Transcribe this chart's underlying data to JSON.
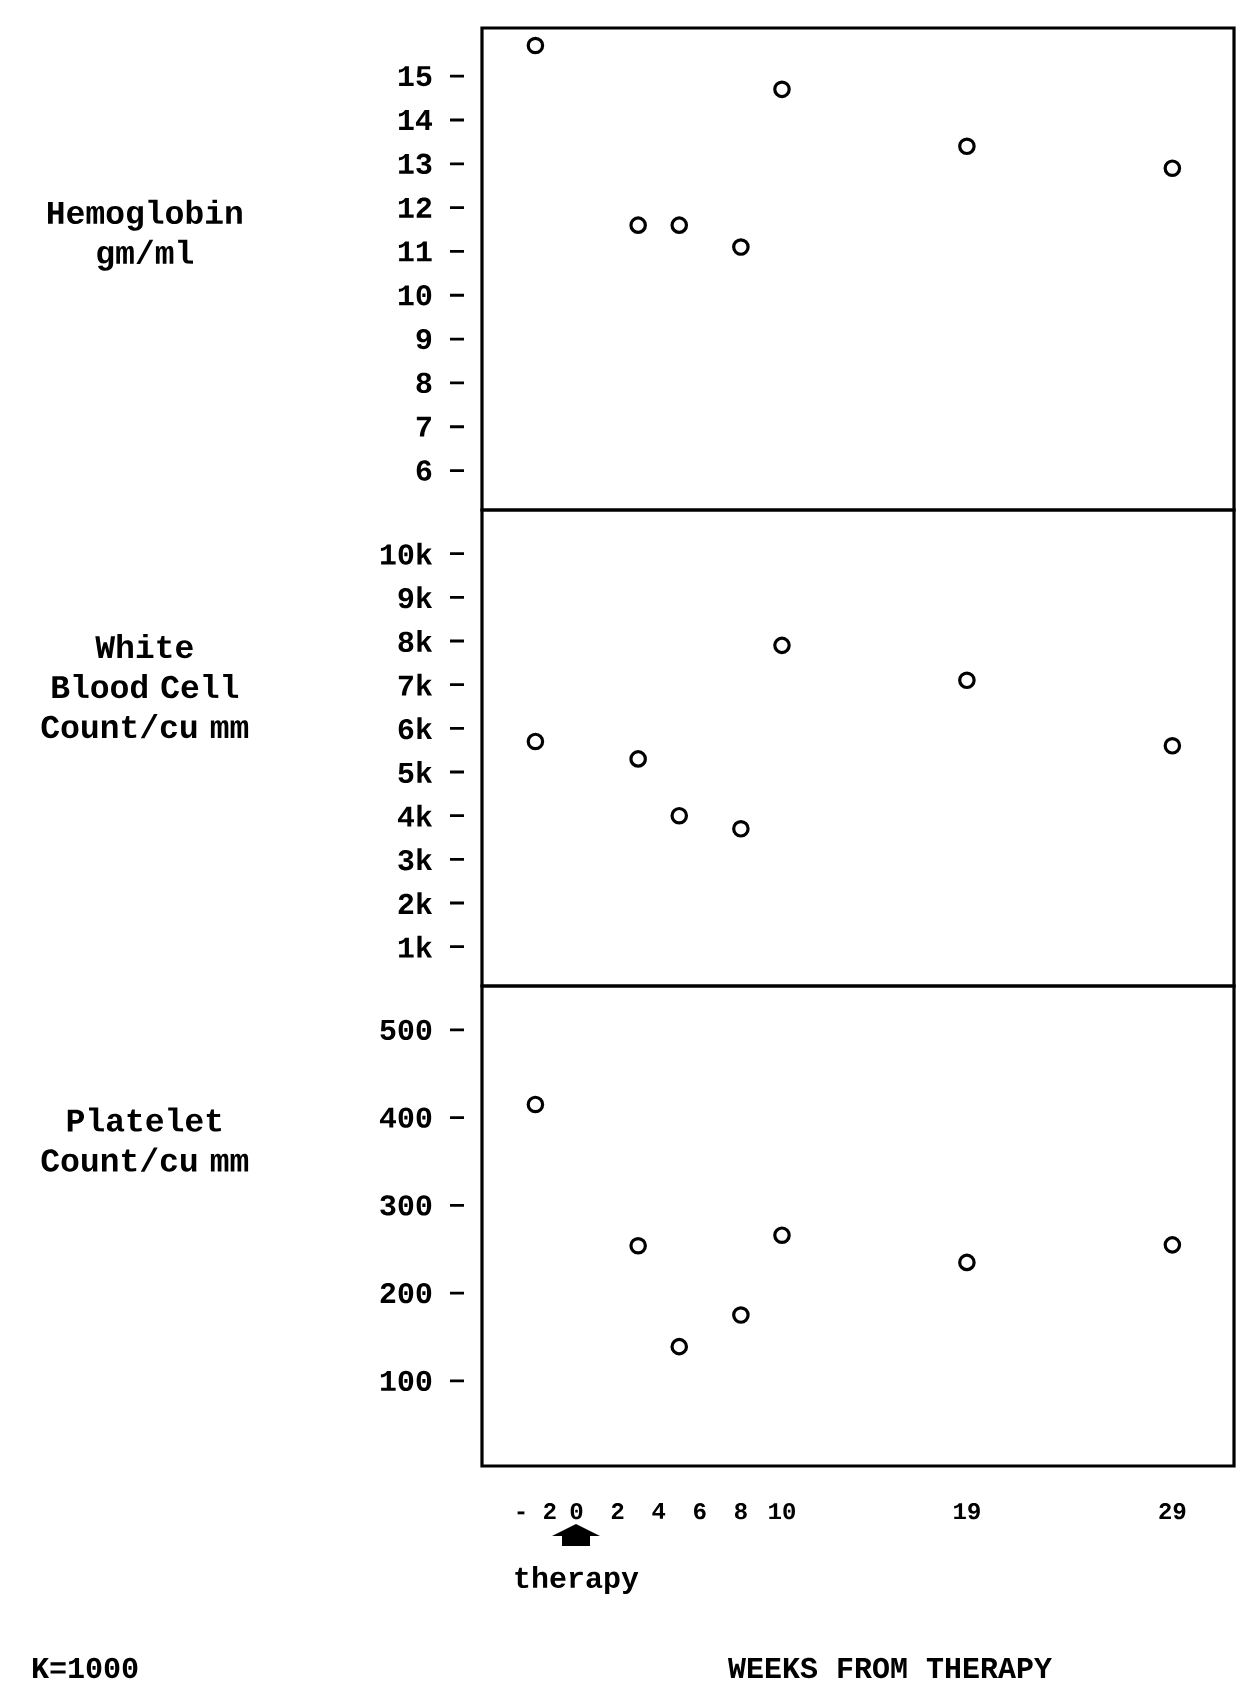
{
  "chart_data": [
    {
      "type": "scatter",
      "ylabel": "Hemoglobin gm/ml",
      "marker": "circle",
      "tick_labels": "y",
      "x": [
        -2,
        3,
        5,
        8,
        10,
        19,
        29
      ],
      "values": [
        15.7,
        11.6,
        11.6,
        11.1,
        14.7,
        13.4,
        12.9
      ],
      "xlim": [
        -4.6,
        32
      ],
      "ylim": [
        5.1,
        16.1
      ],
      "yticks": [
        6,
        7,
        8,
        9,
        10,
        11,
        12,
        13,
        14,
        15
      ]
    },
    {
      "type": "scatter",
      "ylabel": "White Blood Cell Count/cu mm",
      "marker": "circle",
      "tick_labels": "y",
      "x": [
        -2,
        3,
        5,
        8,
        10,
        19,
        29
      ],
      "values": [
        5.7,
        5.3,
        4.0,
        3.7,
        7.9,
        7.1,
        5.6
      ],
      "xlim": [
        -4.6,
        32
      ],
      "ylim": [
        0.1,
        11
      ],
      "yticks": [
        {
          "value": 1,
          "label": "1k"
        },
        {
          "value": 2,
          "label": "2k"
        },
        {
          "value": 3,
          "label": "3k"
        },
        {
          "value": 4,
          "label": "4k"
        },
        {
          "value": 5,
          "label": "5k"
        },
        {
          "value": 6,
          "label": "6k"
        },
        {
          "value": 7,
          "label": "7k"
        },
        {
          "value": 8,
          "label": "8k"
        },
        {
          "value": 9,
          "label": "9k"
        },
        {
          "value": 10,
          "label": "10k"
        }
      ]
    },
    {
      "type": "scatter",
      "ylabel": "Platelet Count/cu mm",
      "xlabel": "WEEKS FROM THERAPY",
      "marker": "circle",
      "x": [
        -2,
        3,
        5,
        8,
        10,
        19,
        29
      ],
      "values": [
        415,
        254,
        139,
        175,
        266,
        235,
        255
      ],
      "xlim": [
        -4.6,
        32
      ],
      "xticks": [
        {
          "value": -2,
          "label": "- 2"
        },
        0,
        2,
        4,
        6,
        8,
        10,
        19,
        29
      ],
      "ylim": [
        3,
        550
      ],
      "yticks": [
        100,
        200,
        300,
        400,
        500
      ],
      "annotations": [
        "therapy",
        "K=1000"
      ]
    }
  ]
}
